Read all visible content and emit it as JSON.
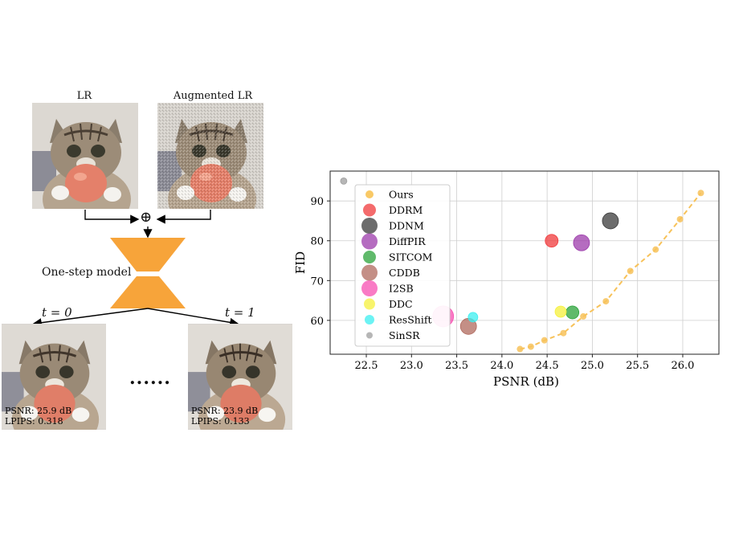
{
  "figure": {
    "lr_label": "LR",
    "aug_label": "Augmented LR",
    "model_label": "One-step model",
    "t0_label": "t = 0",
    "t1_label": "t = 1",
    "ellipsis": "......",
    "out0_psnr": "PSNR: 25.9 dB",
    "out0_lpips": "LPIPS: 0.318",
    "out1_psnr": "PSNR: 23.9 dB",
    "out1_lpips": "LPIPS: 0.133",
    "plus_symbol": "⊕",
    "colors": {
      "model": "#F7A43A",
      "arrow": "#000000"
    }
  },
  "chart_data": {
    "type": "scatter",
    "title": "",
    "xlabel": "PSNR (dB)",
    "ylabel": "FID",
    "xlim": [
      22.1,
      26.4
    ],
    "ylim": [
      51.5,
      97.5
    ],
    "xticks": [
      22.5,
      23.0,
      23.5,
      24.0,
      24.5,
      25.0,
      25.5,
      26.0
    ],
    "xtick_labels": [
      "22.5",
      "23.0",
      "23.5",
      "24.0",
      "24.5",
      "25.0",
      "25.5",
      "26.0"
    ],
    "yticks": [
      60,
      70,
      80,
      90
    ],
    "ytick_labels": [
      "60",
      "70",
      "80",
      "90"
    ],
    "grid": true,
    "legend_position": "left",
    "ours_curve": {
      "name": "Ours",
      "color": "#F7C25A",
      "x": [
        24.2,
        24.32,
        24.47,
        24.68,
        24.9,
        25.15,
        25.42,
        25.7,
        25.97,
        26.2
      ],
      "y": [
        52.8,
        53.4,
        55.0,
        56.8,
        61.0,
        64.8,
        72.4,
        77.8,
        85.4,
        92.0
      ]
    },
    "series": [
      {
        "name": "Ours",
        "color": "#F7B733",
        "size": 5,
        "x": [],
        "y": []
      },
      {
        "name": "DDRM",
        "color": "#F0393B",
        "size": 8,
        "x": [
          24.55
        ],
        "y": [
          80.0
        ]
      },
      {
        "name": "DDNM",
        "color": "#3B3B3B",
        "size": 10,
        "x": [
          25.2
        ],
        "y": [
          85.0
        ]
      },
      {
        "name": "DiffPIR",
        "color": "#9C3BAB",
        "size": 10,
        "x": [
          24.88
        ],
        "y": [
          79.5
        ]
      },
      {
        "name": "SITCOM",
        "color": "#2BA33A",
        "size": 8,
        "x": [
          24.78
        ],
        "y": [
          62.0
        ]
      },
      {
        "name": "CDDB",
        "color": "#B06A5E",
        "size": 10,
        "x": [
          23.63
        ],
        "y": [
          58.5
        ]
      },
      {
        "name": "I2SB",
        "color": "#F74FB1",
        "size": 13,
        "x": [
          23.35
        ],
        "y": [
          61.0
        ]
      },
      {
        "name": "DDC",
        "color": "#F5F03B",
        "size": 7,
        "x": [
          24.65
        ],
        "y": [
          62.2
        ]
      },
      {
        "name": "ResShift",
        "color": "#3BEFF0",
        "size": 6,
        "x": [
          23.68
        ],
        "y": [
          60.8
        ]
      },
      {
        "name": "SinSR",
        "color": "#9E9E9E",
        "size": 4,
        "x": [
          22.25
        ],
        "y": [
          95.0
        ]
      }
    ]
  }
}
